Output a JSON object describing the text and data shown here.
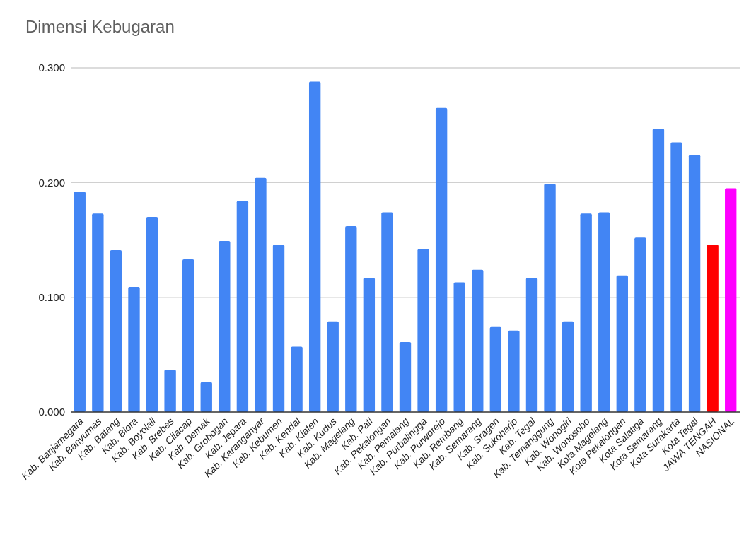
{
  "chart_data": {
    "type": "bar",
    "title": "Dimensi Kebugaran",
    "categories": [
      "Kab. Banjarnegara",
      "Kab. Banyumas",
      "Kab. Batang",
      "Kab. Blora",
      "Kab. Boyolali",
      "Kab. Brebes",
      "Kab. Cilacap",
      "Kab. Demak",
      "Kab. Grobogan",
      "Kab. Jepara",
      "Kab. Karanganyar",
      "Kab. Kebumen",
      "Kab. Kendal",
      "Kab. Klaten",
      "Kab. Kudus",
      "Kab. Magelang",
      "Kab. Pati",
      "Kab. Pekalongan",
      "Kab. Pemalang",
      "Kab. Purbalingga",
      "Kab. Purworejo",
      "Kab. Rembang",
      "Kab. Semarang",
      "Kab. Sragen",
      "Kab. Sukoharjo",
      "Kab. Tegal",
      "Kab. Temanggung",
      "Kab. Wonogiri",
      "Kab. Wonosobo",
      "Kota Magelang",
      "Kota Pekalongan",
      "Kota Salatiga",
      "Kota Semarang",
      "Kota Surakarta",
      "Kota Tegal",
      "JAWA TENGAH",
      "NASIONAL"
    ],
    "values": [
      0.192,
      0.173,
      0.141,
      0.109,
      0.17,
      0.037,
      0.133,
      0.026,
      0.149,
      0.184,
      0.204,
      0.146,
      0.057,
      0.288,
      0.079,
      0.162,
      0.117,
      0.174,
      0.061,
      0.142,
      0.265,
      0.113,
      0.124,
      0.074,
      0.071,
      0.117,
      0.199,
      0.079,
      0.173,
      0.174,
      0.119,
      0.152,
      0.247,
      0.235,
      0.224,
      0.146,
      0.195
    ],
    "colors": [
      "#4285f4",
      "#4285f4",
      "#4285f4",
      "#4285f4",
      "#4285f4",
      "#4285f4",
      "#4285f4",
      "#4285f4",
      "#4285f4",
      "#4285f4",
      "#4285f4",
      "#4285f4",
      "#4285f4",
      "#4285f4",
      "#4285f4",
      "#4285f4",
      "#4285f4",
      "#4285f4",
      "#4285f4",
      "#4285f4",
      "#4285f4",
      "#4285f4",
      "#4285f4",
      "#4285f4",
      "#4285f4",
      "#4285f4",
      "#4285f4",
      "#4285f4",
      "#4285f4",
      "#4285f4",
      "#4285f4",
      "#4285f4",
      "#4285f4",
      "#4285f4",
      "#4285f4",
      "#ff0000",
      "#ff00ff"
    ],
    "ylim": [
      0,
      0.3
    ],
    "yticks": [
      {
        "value": 0,
        "label": "0.000"
      },
      {
        "value": 0.1,
        "label": "0.100"
      },
      {
        "value": 0.2,
        "label": "0.200"
      },
      {
        "value": 0.3,
        "label": "0.300"
      }
    ],
    "grid": "y"
  }
}
